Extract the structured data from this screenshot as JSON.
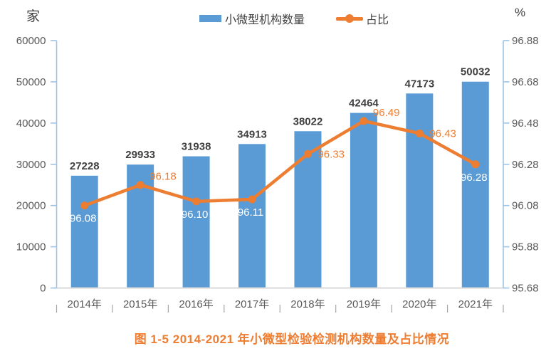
{
  "figure": {
    "unit_left": "家",
    "unit_right": "%",
    "caption": "图 1-5   2014-2021 年小微型检验检测机构数量及占比情况"
  },
  "legend": {
    "bar_label": "小微型机构数量",
    "line_label": "占比"
  },
  "chart_data": {
    "type": "combo bar+line",
    "categories": [
      "2014年",
      "2015年",
      "2016年",
      "2017年",
      "2018年",
      "2019年",
      "2020年",
      "2021年"
    ],
    "series": [
      {
        "name": "小微型机构数量",
        "type": "bar",
        "axis": "left",
        "values": [
          27228,
          29933,
          31938,
          34913,
          38022,
          42464,
          47173,
          50032
        ],
        "data_labels": [
          "27228",
          "29933",
          "31938",
          "34913",
          "38022",
          "42464",
          "47173",
          "50032"
        ]
      },
      {
        "name": "占比",
        "type": "line",
        "axis": "right",
        "values": [
          96.08,
          96.18,
          96.1,
          96.11,
          96.33,
          96.49,
          96.43,
          96.28
        ],
        "data_labels": [
          "96.08",
          "96.18",
          "96.10",
          "96.11",
          "96.33",
          "96.49",
          "96.43",
          "96.28"
        ],
        "label_placements": [
          "below",
          "above-right",
          "below",
          "below",
          "right",
          "above-right",
          "right",
          "below"
        ]
      }
    ],
    "left_axis": {
      "unit": "家",
      "min": 0,
      "max": 60000,
      "step": 10000,
      "tick_labels": [
        "0",
        "10000",
        "20000",
        "30000",
        "40000",
        "50000",
        "60000"
      ]
    },
    "right_axis": {
      "unit": "%",
      "min": 95.68,
      "max": 96.88,
      "step": 0.2,
      "tick_labels": [
        "95.68",
        "95.88",
        "96.08",
        "96.28",
        "96.48",
        "96.68",
        "96.88"
      ]
    },
    "grid": false,
    "legend_position": "top-center",
    "title": "图 1-5   2014-2021 年小微型检验检测机构数量及占比情况"
  },
  "colors": {
    "bar": "#5B9BD5",
    "line": "#ED7D31",
    "axis_line": "#9DC3E6",
    "baseline": "#D9D9D9",
    "tick_text": "#595959",
    "bar_label_text": "#404040",
    "white_label": "#FFFFFF",
    "orange_label": "#ED7D31",
    "caption_text": "#ED7D31",
    "xtick_mark": "#A6A6A6"
  }
}
